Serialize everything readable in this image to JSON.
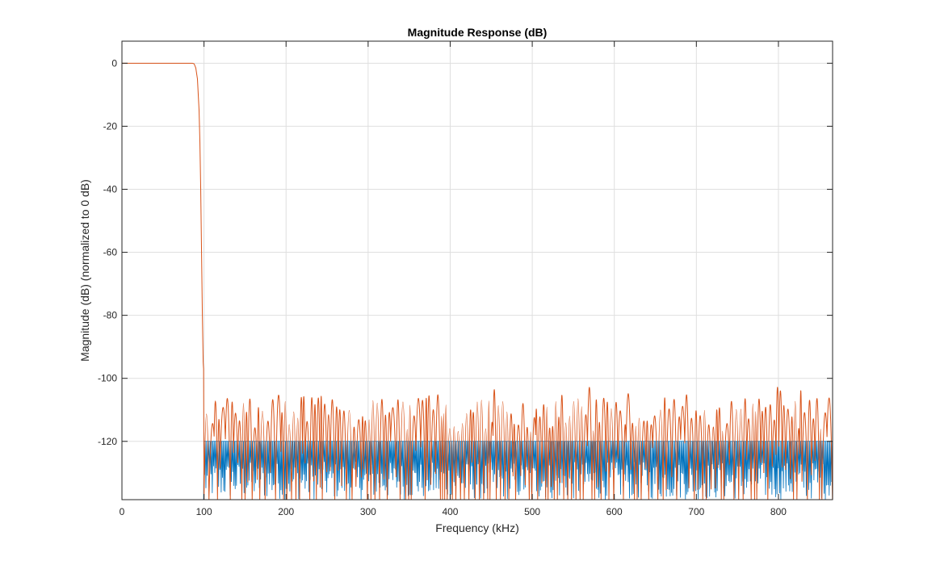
{
  "chart_data": {
    "type": "line",
    "title": "Magnitude Response (dB)",
    "xlabel": "Frequency (kHz)",
    "ylabel": "Magnitude (dB) (normalized to 0 dB)",
    "xlim": [
      0,
      866
    ],
    "ylim": [
      -138.5,
      7
    ],
    "xticks": [
      0,
      100,
      200,
      300,
      400,
      500,
      600,
      700,
      800
    ],
    "yticks": [
      0,
      -20,
      -40,
      -60,
      -80,
      -100,
      -120
    ],
    "xtick_labels": [
      "0",
      "100",
      "200",
      "300",
      "400",
      "500",
      "600",
      "700",
      "800"
    ],
    "ytick_labels": [
      "0",
      "-20",
      "-40",
      "-60",
      "-80",
      "-100",
      "-120"
    ],
    "grid": true,
    "series": [
      {
        "color": "#0072BD",
        "description": "dense ripple band from -120 dB down to the axis bottom, starting at the band edge",
        "x": [
          0,
          98,
          99.5,
          100,
          866
        ],
        "y": [
          -138.5,
          -138.5,
          -138.5,
          -120,
          -120
        ],
        "ripple": {
          "x_start": 100,
          "x_end": 866,
          "top": -120,
          "bottom": -138.5,
          "period_khz": 1.55
        }
      },
      {
        "color": "#D95319",
        "description": "lowpass response with passband at 0 dB and stopband sidelobes near -95 to -138 dB",
        "x": [
          0,
          86,
          88,
          90,
          92,
          94,
          95,
          96,
          97,
          98,
          99,
          99.5
        ],
        "y": [
          0,
          0,
          -0.2,
          -1.5,
          -5,
          -15,
          -25,
          -40,
          -60,
          -80,
          -95,
          -97
        ],
        "stopband": {
          "x_start": 100,
          "x_end": 866,
          "peak_range": [
            -109,
            -94
          ],
          "floor": -138.5
        }
      }
    ]
  }
}
